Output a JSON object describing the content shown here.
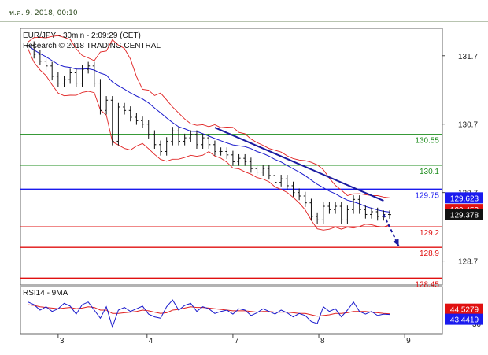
{
  "header": {
    "timestamp": "พ.ค. 9, 2018, 00:10"
  },
  "chart_data": {
    "type": "line",
    "title": "EUR/JPY - 30min - 2:09:29 (CET)",
    "subtitle": "Research © 2018 TRADING CENTRAL",
    "x_ticks": [
      "3",
      "4",
      "7",
      "8",
      "9"
    ],
    "y_ticks": [
      131.7,
      130.7,
      129.7,
      128.7
    ],
    "ylim": [
      128.35,
      132.1
    ],
    "price_series": {
      "name": "EUR/JPY",
      "x": [
        0,
        0.4,
        0.8,
        1.2,
        1.6,
        2,
        2.4,
        2.8,
        3.2,
        3.6,
        4,
        4.4,
        4.8,
        5.2,
        5.6,
        6,
        6.4,
        6.8,
        7.2,
        7.6,
        8,
        8.4,
        8.8,
        9.2,
        9.6,
        10,
        10.4,
        10.8,
        11.2,
        11.6,
        12,
        12.4,
        12.8,
        13.2,
        13.6,
        14,
        14.4,
        14.8,
        15.2,
        15.6,
        16,
        16.4,
        16.8,
        17.2,
        17.6,
        18,
        18.4,
        18.8,
        19.2,
        19.6,
        20,
        20.4,
        20.8,
        21.2,
        21.6,
        22,
        22.4,
        22.8,
        23.2,
        23.6,
        24
      ],
      "close": [
        131.85,
        131.72,
        131.62,
        131.55,
        131.4,
        131.3,
        131.35,
        131.45,
        131.3,
        131.5,
        131.55,
        131.3,
        130.9,
        131.05,
        130.45,
        130.95,
        130.9,
        130.8,
        130.75,
        130.7,
        130.55,
        130.4,
        130.3,
        130.45,
        130.6,
        130.45,
        130.5,
        130.55,
        130.4,
        130.5,
        130.4,
        130.3,
        130.3,
        130.25,
        130.15,
        130.2,
        130.15,
        130.05,
        130.0,
        130.05,
        129.95,
        129.85,
        129.9,
        129.8,
        129.7,
        129.65,
        129.55,
        129.35,
        129.3,
        129.5,
        129.45,
        129.5,
        129.3,
        129.45,
        129.6,
        129.45,
        129.38,
        129.42,
        129.35,
        129.38,
        129.378
      ]
    },
    "resistance_trendline": {
      "from": [
        12.4,
        130.65
      ],
      "to": [
        23.6,
        129.58
      ]
    },
    "projection_arrow": {
      "from": [
        23.6,
        129.38
      ],
      "to": [
        24.6,
        128.92
      ]
    },
    "levels": [
      {
        "value": 130.55,
        "label": "130.55",
        "color": "#1c8c1c"
      },
      {
        "value": 130.1,
        "label": "130.1",
        "color": "#1c8c1c"
      },
      {
        "value": 129.75,
        "label": "129.75",
        "color": "#1a1aee"
      },
      {
        "value": 129.2,
        "label": "129.2",
        "color": "#e01010"
      },
      {
        "value": 128.9,
        "label": "128.9",
        "color": "#e01010"
      },
      {
        "value": 128.45,
        "label": "128.45",
        "color": "#e01010"
      }
    ],
    "price_badges": [
      {
        "value": 129.623,
        "label": "129.623",
        "color": "#1a1aee"
      },
      {
        "value": 129.453,
        "label": "129.453",
        "color": "#e01010"
      },
      {
        "value": 129.378,
        "label": "129.378",
        "color": "#111111"
      }
    ],
    "rsi_panel": {
      "title": "RSI14 - 9MA",
      "ylim": [
        15,
        85
      ],
      "y_ticks": [
        30
      ],
      "rsi": [
        62,
        58,
        50,
        55,
        48,
        52,
        60,
        56,
        44,
        58,
        62,
        50,
        38,
        55,
        25,
        50,
        54,
        48,
        52,
        56,
        44,
        40,
        38,
        55,
        65,
        50,
        57,
        60,
        48,
        55,
        52,
        45,
        48,
        50,
        44,
        52,
        50,
        42,
        46,
        52,
        48,
        44,
        50,
        46,
        40,
        45,
        42,
        33,
        30,
        55,
        48,
        52,
        40,
        50,
        62,
        48,
        44,
        48,
        42,
        44,
        43.4419
      ],
      "ma": [
        58,
        57,
        55,
        54,
        53,
        52,
        53,
        54,
        52,
        53,
        55,
        54,
        50,
        50,
        45,
        45,
        46,
        47,
        48,
        50,
        49,
        47,
        45,
        46,
        50,
        51,
        53,
        55,
        54,
        54,
        53,
        52,
        51,
        50,
        49,
        49,
        49,
        48,
        47,
        48,
        48,
        47,
        47,
        47,
        46,
        45,
        45,
        43,
        41,
        42,
        43,
        45,
        45,
        46,
        48,
        48,
        48,
        47,
        46,
        45,
        44.5279
      ],
      "badges": [
        {
          "value": 44.5279,
          "label": "44.5279",
          "color": "#e01010"
        },
        {
          "value": 43.4419,
          "label": "43.4419",
          "color": "#1a1aee"
        }
      ]
    },
    "colors": {
      "bollinger": "#e02020",
      "moving_average": "#1a1acc",
      "candles": "#111111",
      "rsi": "#1a1acc",
      "rsi_ma": "#e02020"
    }
  }
}
